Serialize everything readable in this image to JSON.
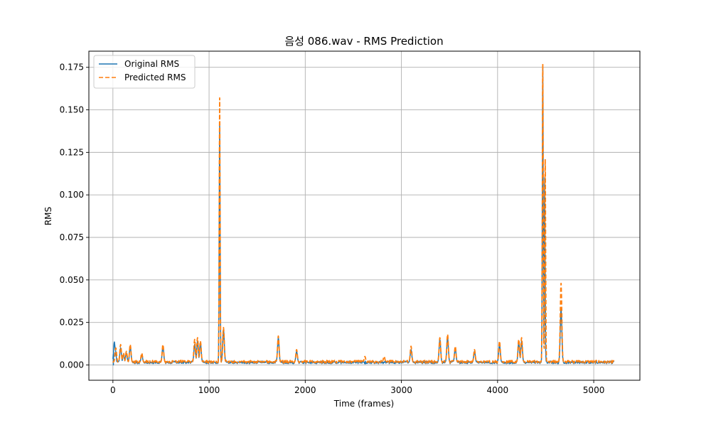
{
  "chart_data": {
    "type": "line",
    "title": "음성 086.wav - RMS Prediction",
    "xlabel": "Time (frames)",
    "ylabel": "RMS",
    "xlim": [
      -250,
      5480
    ],
    "ylim": [
      -0.009,
      0.1845
    ],
    "xticks": [
      0,
      1000,
      2000,
      3000,
      4000,
      5000
    ],
    "xtick_labels": [
      "0",
      "1000",
      "2000",
      "3000",
      "4000",
      "5000"
    ],
    "yticks": [
      0.0,
      0.025,
      0.05,
      0.075,
      0.1,
      0.125,
      0.15,
      0.175
    ],
    "ytick_labels": [
      "0.000",
      "0.025",
      "0.050",
      "0.075",
      "0.100",
      "0.125",
      "0.150",
      "0.175"
    ],
    "grid": true,
    "legend_position": "top-left",
    "x_extent": [
      0,
      5210
    ],
    "baseline": 0.0015,
    "series": [
      {
        "name": "Original RMS",
        "color": "#1f77b4",
        "style": "solid",
        "peaks": [
          [
            5,
            0.0
          ],
          [
            15,
            0.0135
          ],
          [
            25,
            0.009
          ],
          [
            40,
            0.002
          ],
          [
            80,
            0.01
          ],
          [
            110,
            0.006
          ],
          [
            140,
            0.007
          ],
          [
            180,
            0.011
          ],
          [
            300,
            0.006
          ],
          [
            520,
            0.011
          ],
          [
            850,
            0.012
          ],
          [
            880,
            0.014
          ],
          [
            910,
            0.013
          ],
          [
            1110,
            0.142
          ],
          [
            1150,
            0.021
          ],
          [
            1720,
            0.016
          ],
          [
            1910,
            0.008
          ],
          [
            3100,
            0.009
          ],
          [
            3400,
            0.015
          ],
          [
            3480,
            0.016
          ],
          [
            3560,
            0.01
          ],
          [
            3760,
            0.008
          ],
          [
            4020,
            0.012
          ],
          [
            4220,
            0.013
          ],
          [
            4250,
            0.014
          ],
          [
            4470,
            0.175
          ],
          [
            4490,
            0.11
          ],
          [
            4660,
            0.033
          ]
        ]
      },
      {
        "name": "Predicted RMS",
        "color": "#ff7f0e",
        "style": "dashed",
        "peaks": [
          [
            30,
            0.01
          ],
          [
            80,
            0.012
          ],
          [
            110,
            0.007
          ],
          [
            140,
            0.008
          ],
          [
            180,
            0.012
          ],
          [
            300,
            0.007
          ],
          [
            520,
            0.012
          ],
          [
            850,
            0.015
          ],
          [
            880,
            0.016
          ],
          [
            910,
            0.014
          ],
          [
            1110,
            0.157
          ],
          [
            1150,
            0.022
          ],
          [
            1720,
            0.017
          ],
          [
            1910,
            0.009
          ],
          [
            2620,
            0.005
          ],
          [
            2820,
            0.005
          ],
          [
            3100,
            0.011
          ],
          [
            3400,
            0.016
          ],
          [
            3480,
            0.018
          ],
          [
            3560,
            0.011
          ],
          [
            3760,
            0.009
          ],
          [
            4020,
            0.014
          ],
          [
            4220,
            0.015
          ],
          [
            4250,
            0.016
          ],
          [
            4470,
            0.177
          ],
          [
            4495,
            0.121
          ],
          [
            4660,
            0.048
          ]
        ]
      }
    ]
  }
}
